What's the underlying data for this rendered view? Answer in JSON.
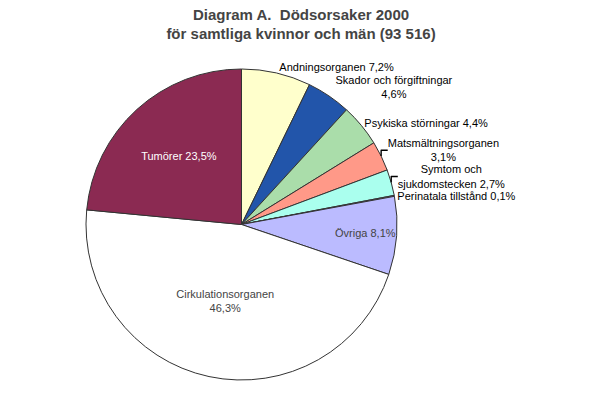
{
  "chart_data": {
    "type": "pie",
    "title": "Diagram A.  Dödsorsaker 2000",
    "subtitle": "för samtliga kvinnor och män (93 516)",
    "categories": [
      "Andningsorganen 7,2%",
      "Skador och förgiftningar\n4,6%",
      "Psykiska störningar 4,4%",
      "Matsmältningsorganen\n3,1%",
      "Symtom och\nsjukdomstecken 2,7%",
      "Perinatala tillstånd 0,1%",
      "Övriga 8,1%",
      "Cirkulationsorganen\n46,3%",
      "Tumörer 23,5%"
    ],
    "values": [
      7.2,
      4.6,
      4.4,
      3.1,
      2.7,
      0.1,
      8.1,
      46.3,
      23.5
    ],
    "colors": [
      "#FFFFCC",
      "#2255AA",
      "#AADDAA",
      "#FF9988",
      "#AAFFEE",
      "#9999CC",
      "#BBBBFF",
      "#FFFFFF",
      "#8B2A52"
    ]
  }
}
